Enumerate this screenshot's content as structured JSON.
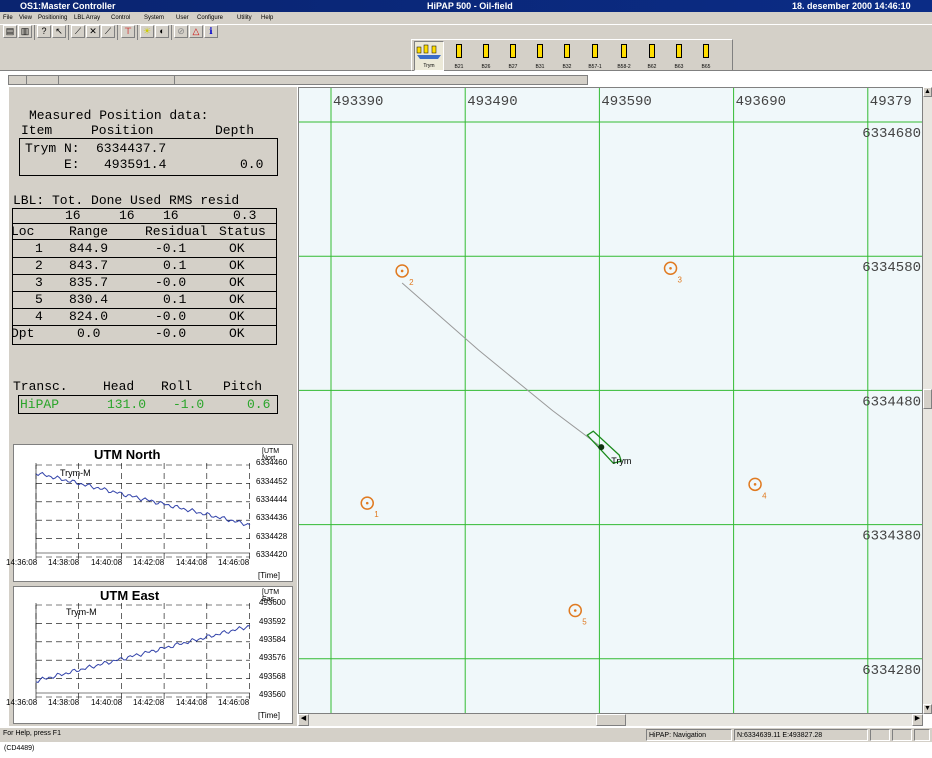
{
  "window": {
    "title": "OS1:Master Controller",
    "app_title": "HiPAP 500 - Oil-field",
    "datetime": "18. desember 2000 14:46:10"
  },
  "menu": [
    "File",
    "View",
    "Positioning",
    "LBL Array",
    "Control",
    "System",
    "User",
    "Configure",
    "Utility",
    "Help"
  ],
  "toolbar_icons": [
    "open-icon",
    "save-icon",
    "help-icon",
    "context-help-icon",
    "tool-icon",
    "tool-icon",
    "tool-icon",
    "transducer-icon",
    "sun-icon",
    "contrast-icon",
    "grid-icon",
    "alarm-icon",
    "info-icon"
  ],
  "transponders": [
    "Trym",
    "B21",
    "B26",
    "B27",
    "B31",
    "B32",
    "B57-1",
    "B58-2",
    "B62",
    "B63",
    "B65"
  ],
  "measured": {
    "heading": "Measured Position data:",
    "col_item": "Item",
    "col_position": "Position",
    "col_depth": "Depth",
    "item": "Trym",
    "n_label": "N:",
    "n_value": "6334437.7",
    "e_label": "E:",
    "e_value": "493591.4",
    "depth": "0.0"
  },
  "lbl": {
    "header": "LBL: Tot. Done Used RMS resid",
    "tot": "16",
    "done": "16",
    "used": "16",
    "rms": "0.3",
    "columns": [
      "Loc",
      "Range",
      "Residual",
      "Status"
    ],
    "rows": [
      {
        "loc": "1",
        "range": "844.9",
        "residual": "-0.1",
        "status": "OK"
      },
      {
        "loc": "2",
        "range": "843.7",
        "residual": "0.1",
        "status": "OK"
      },
      {
        "loc": "3",
        "range": "835.7",
        "residual": "-0.0",
        "status": "OK"
      },
      {
        "loc": "5",
        "range": "830.4",
        "residual": "0.1",
        "status": "OK"
      },
      {
        "loc": "4",
        "range": "824.0",
        "residual": "-0.0",
        "status": "OK"
      },
      {
        "loc": "Dpt",
        "range": "0.0",
        "residual": "-0.0",
        "status": "OK"
      }
    ]
  },
  "transc": {
    "columns": [
      "Transc.",
      "Head",
      "Roll",
      "Pitch"
    ],
    "name": "HiPAP",
    "head": "131.0",
    "roll": "-1.0",
    "pitch": "0.6",
    "color": "#2aa52a"
  },
  "utm_north": {
    "title": "UTM North",
    "unit": "[UTM Nort",
    "series": "Trym-M",
    "y_ticks": [
      "6334460",
      "6334452",
      "6334444",
      "6334436",
      "6334428",
      "6334420"
    ],
    "x_ticks": [
      "14:36:08",
      "14:38:08",
      "14:40:08",
      "14:42:08",
      "14:44:08",
      "14:46:08"
    ],
    "x_unit": "[Time]"
  },
  "utm_east": {
    "title": "UTM East",
    "unit": "[UTM Eas",
    "series": "Trym-M",
    "y_ticks": [
      "493600",
      "493592",
      "493584",
      "493576",
      "493568",
      "493560"
    ],
    "x_ticks": [
      "14:36:08",
      "14:38:08",
      "14:40:08",
      "14:42:08",
      "14:44:08",
      "14:46:08"
    ],
    "x_unit": "[Time]"
  },
  "map": {
    "easting_labels": [
      "493390",
      "493490",
      "493590",
      "493690",
      "49379"
    ],
    "northing_labels": [
      "6334680",
      "6334580",
      "6334480",
      "6334380",
      "6334280"
    ],
    "grid_color": "#33bb33",
    "transponder_color": "#e07a20",
    "transponders": [
      {
        "id": "1",
        "e": 493417,
        "n": 6334396
      },
      {
        "id": "2",
        "e": 493443,
        "n": 6334569
      },
      {
        "id": "3",
        "e": 493643,
        "n": 6334571
      },
      {
        "id": "4",
        "e": 493706,
        "n": 6334410
      },
      {
        "id": "5",
        "e": 493572,
        "n": 6334316
      }
    ],
    "vessel": {
      "label": "Trym",
      "e": 493591.4,
      "n": 6334437.7
    }
  },
  "status": {
    "help": "For Help, press F1",
    "mode": "HiPAP: Navigation",
    "cursor": "N:6334639.11 E:493827.28"
  },
  "caption": "(CD4489)"
}
